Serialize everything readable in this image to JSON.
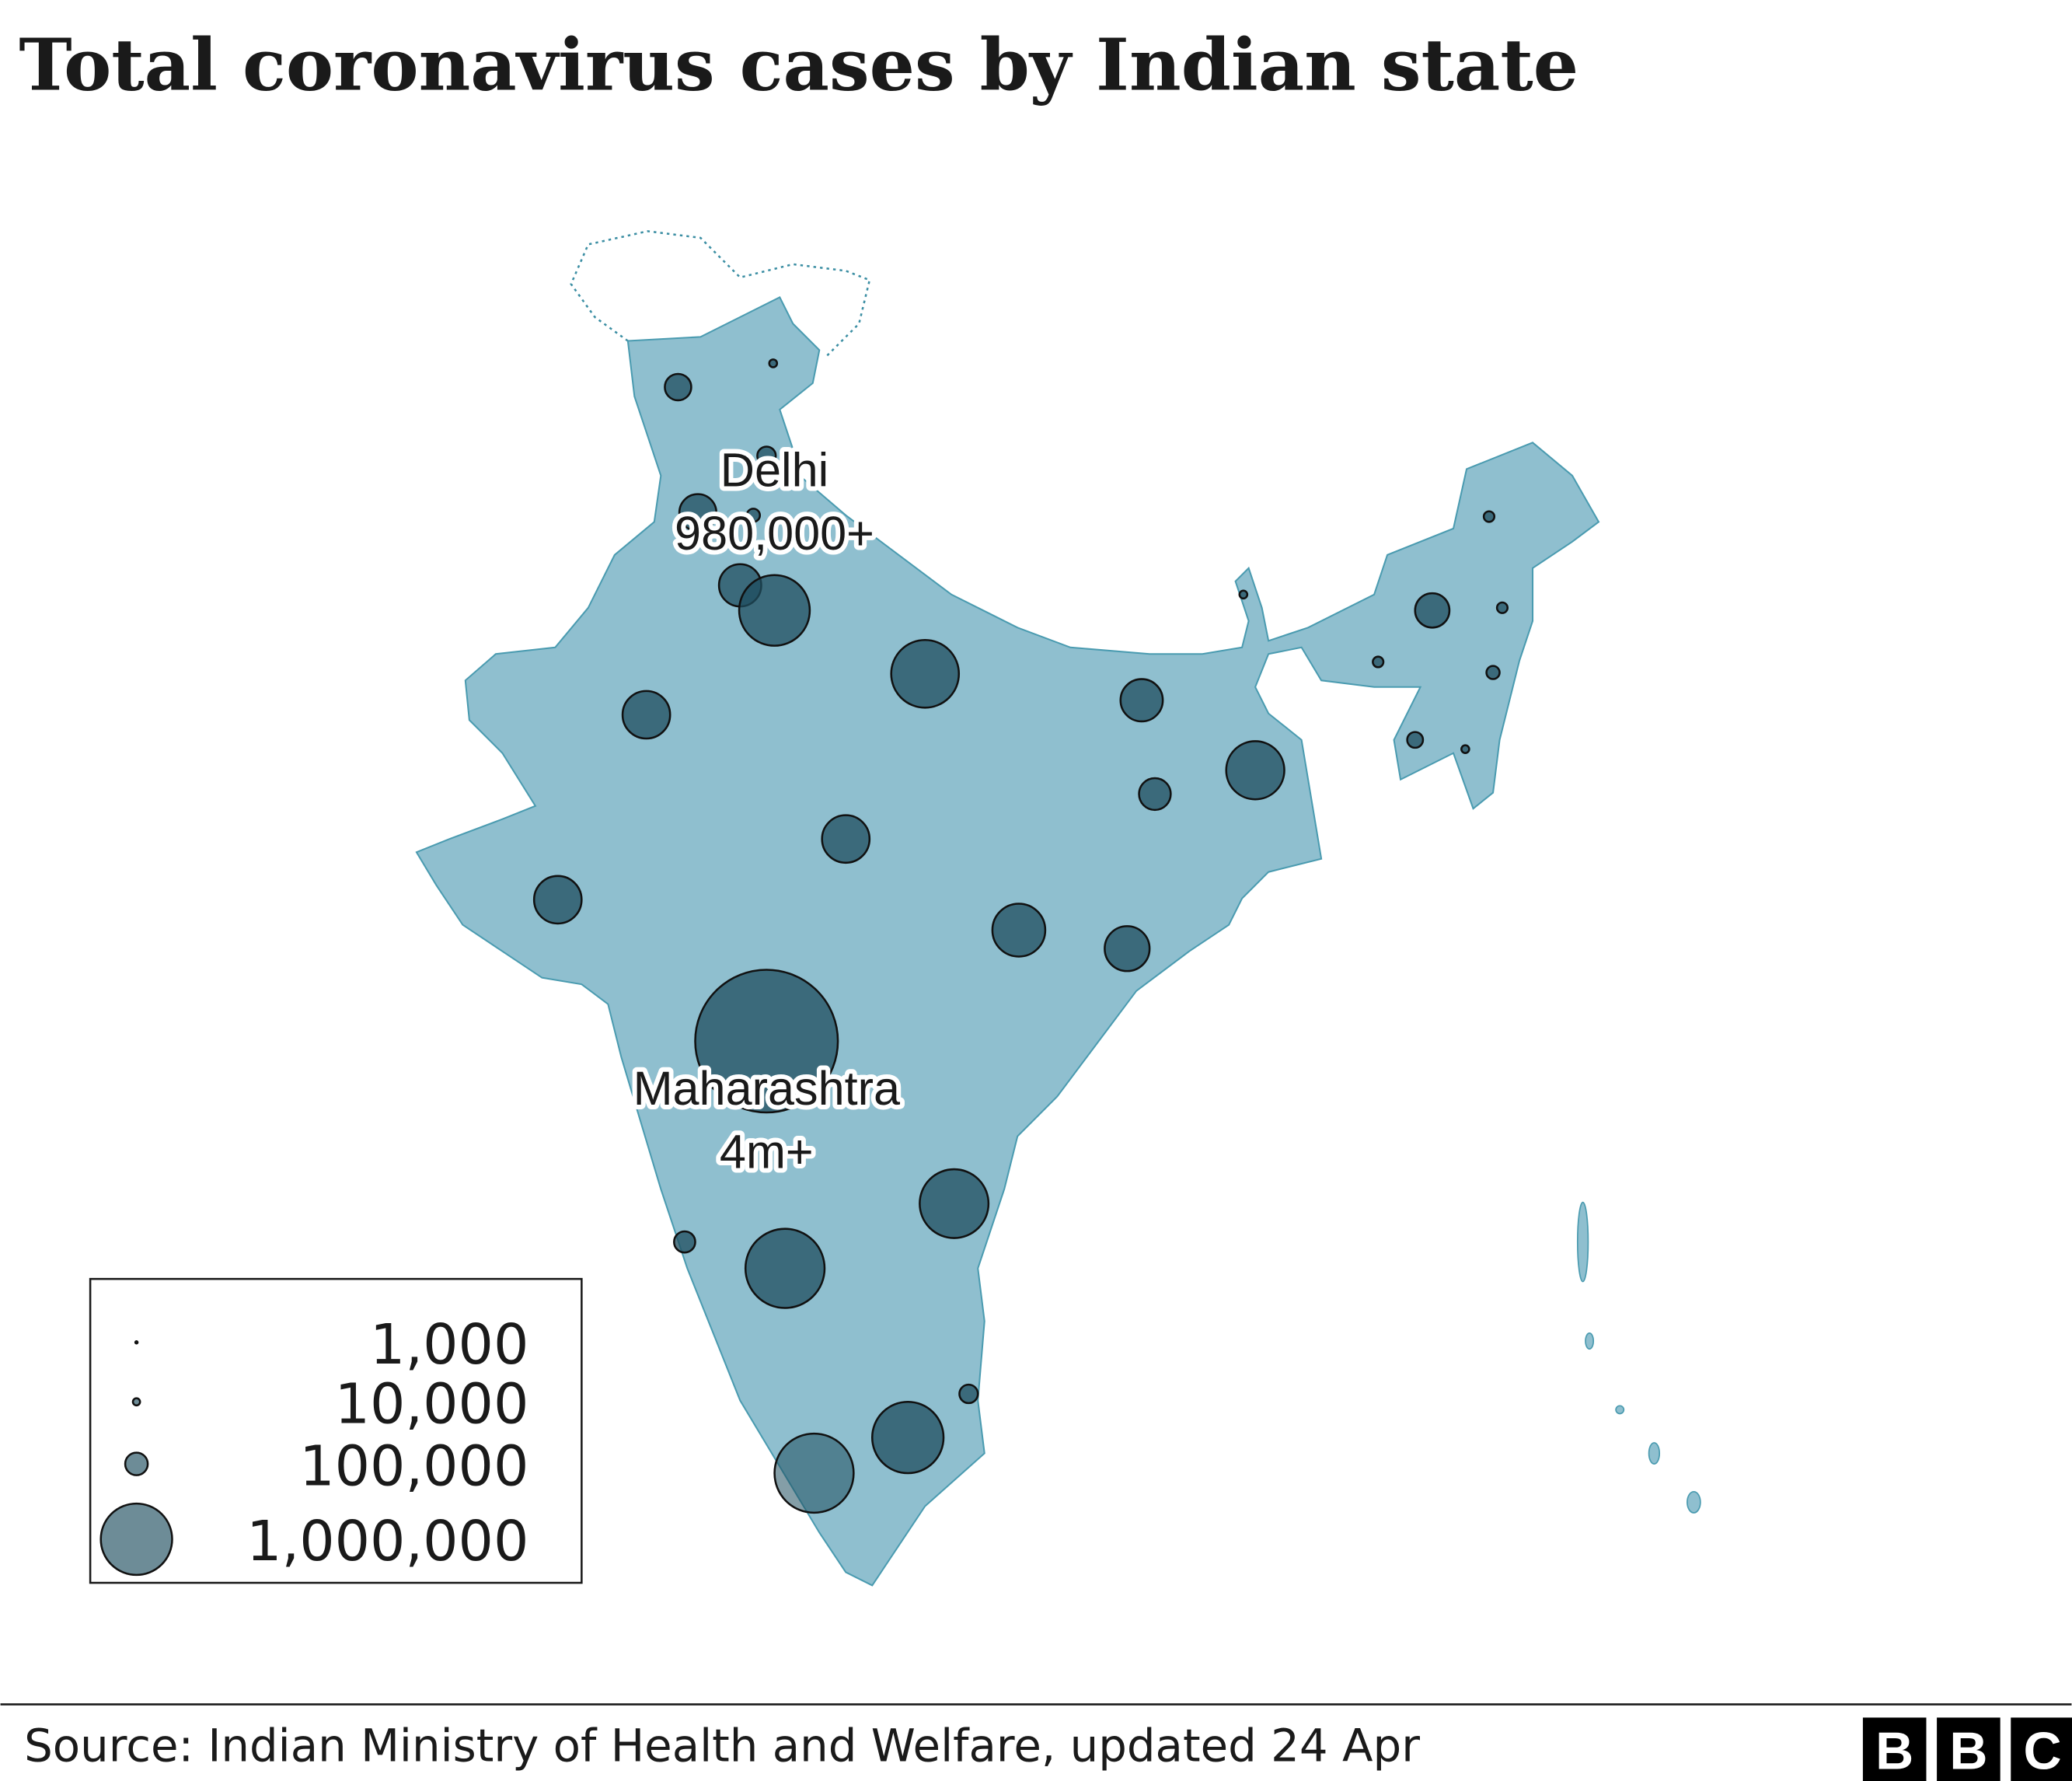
{
  "title": "Total coronavirus cases by Indian state",
  "annotations": [
    {
      "name": "Delhi",
      "value_label": "980,000+"
    },
    {
      "name": "Maharashtra",
      "value_label": "4m+"
    }
  ],
  "bubbles": {
    "values": [
      137000,
      12000,
      67000,
      269000,
      34000,
      351000,
      980000,
      900000,
      444000,
      351000,
      664000,
      198000,
      444000,
      444000,
      549000,
      396000,
      4000000,
      930000,
      88000,
      1230000,
      67000,
      1000000,
      1230000,
      12000,
      22000,
      232000,
      22000,
      22000,
      34000,
      49000,
      12000
    ]
  },
  "legend": {
    "items": [
      {
        "value": 1000,
        "label": "1,000"
      },
      {
        "value": 10000,
        "label": "10,000"
      },
      {
        "value": 100000,
        "label": "100,000"
      },
      {
        "value": 1000000,
        "label": "1,000,000"
      }
    ]
  },
  "source": "Source: Indian Ministry of Health and Welfare, updated 24 Apr",
  "logo": [
    "B",
    "B",
    "C"
  ]
}
